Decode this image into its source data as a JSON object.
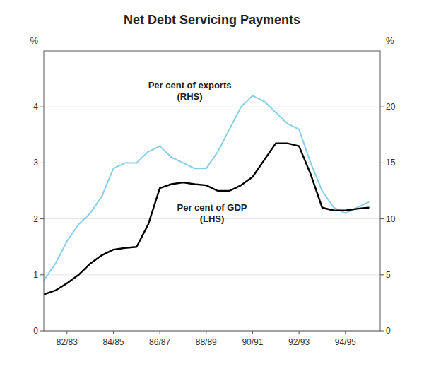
{
  "chart_data": {
    "type": "line",
    "title": "Net Debt Servicing Payments",
    "ylabel": "%",
    "y2label": "%",
    "x": [
      1981,
      1981.5,
      1982,
      1982.5,
      1983,
      1983.5,
      1984,
      1984.5,
      1985,
      1985.5,
      1986,
      1986.5,
      1987,
      1987.5,
      1988,
      1988.5,
      1989,
      1989.5,
      1990,
      1990.5,
      1991,
      1991.5,
      1992,
      1992.5,
      1993,
      1993.5,
      1994,
      1994.5,
      1995
    ],
    "xlim": [
      1981.0,
      1995.5
    ],
    "xticks": [
      {
        "value": 1982,
        "label": "82/83"
      },
      {
        "value": 1984,
        "label": "84/85"
      },
      {
        "value": 1986,
        "label": "86/87"
      },
      {
        "value": 1988,
        "label": "88/89"
      },
      {
        "value": 1990,
        "label": "90/91"
      },
      {
        "value": 1992,
        "label": "92/93"
      },
      {
        "value": 1994,
        "label": "94/95"
      }
    ],
    "ylim": [
      0,
      5
    ],
    "yticks": [
      0,
      1,
      2,
      3,
      4
    ],
    "y2lim": [
      0,
      25
    ],
    "y2ticks": [
      0,
      5,
      10,
      15,
      20
    ],
    "grid": true,
    "annotations": [
      "Per cent of exports",
      "(RHS)",
      "Per cent of GDP",
      "(LHS)"
    ],
    "series": [
      {
        "color": "#000000",
        "values": [
          0.65,
          0.72,
          0.85,
          1.0,
          1.2,
          1.35,
          1.45,
          1.48,
          1.5,
          1.9,
          2.55,
          2.62,
          2.65,
          2.62,
          2.6,
          2.5,
          2.5,
          2.6,
          2.75,
          3.05,
          3.35,
          3.35,
          3.3,
          2.8,
          2.2,
          2.15,
          2.15,
          2.18,
          2.2
        ]
      },
      {
        "color": "#87ceeb",
        "axis": "y2",
        "values": [
          4.5,
          6.0,
          8.0,
          9.5,
          10.5,
          12.0,
          14.5,
          15.0,
          15.0,
          16.0,
          16.5,
          15.5,
          15.0,
          14.5,
          14.5,
          16.0,
          18.0,
          20.0,
          21.0,
          20.5,
          19.5,
          18.5,
          18.0,
          15.0,
          12.5,
          11.0,
          10.5,
          11.0,
          11.5
        ]
      }
    ]
  }
}
